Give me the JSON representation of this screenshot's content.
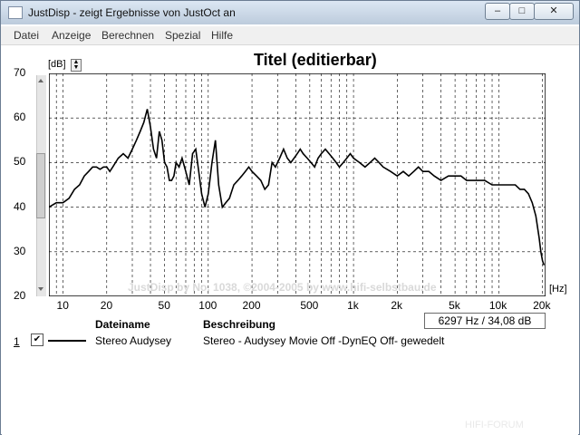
{
  "window": {
    "title": "JustDisp - zeigt Ergebnisse von JustOct an"
  },
  "menu": [
    "Datei",
    "Anzeige",
    "Berechnen",
    "Spezial",
    "Hilfe"
  ],
  "chart_data": {
    "type": "line",
    "title": "Titel (editierbar)",
    "y_unit": "[dB]",
    "x_unit": "[Hz]",
    "ylim": [
      20,
      70
    ],
    "xlim": [
      8,
      21000
    ],
    "x_scale": "log",
    "grid": true,
    "ytick_labels": [
      "70",
      "60",
      "50",
      "40",
      "30",
      "20"
    ],
    "ytick_values": [
      70,
      60,
      50,
      40,
      30,
      20
    ],
    "xtick_labels": [
      "10",
      "20",
      "50",
      "100",
      "200",
      "500",
      "1k",
      "2k",
      "5k",
      "10k",
      "20k"
    ],
    "xtick_values": [
      10,
      20,
      50,
      100,
      200,
      500,
      1000,
      2000,
      5000,
      10000,
      20000
    ],
    "series": [
      {
        "name": "Stereo Audysey",
        "x": [
          8,
          9,
          10,
          11,
          12,
          13,
          14,
          15,
          16,
          17,
          18,
          19,
          20,
          21,
          22,
          24,
          26,
          28,
          30,
          32,
          34,
          36,
          38,
          40,
          42,
          44,
          46,
          48,
          50,
          52,
          54,
          56,
          58,
          60,
          63,
          66,
          70,
          74,
          78,
          82,
          86,
          90,
          95,
          100,
          106,
          112,
          118,
          125,
          132,
          140,
          150,
          160,
          170,
          180,
          190,
          200,
          215,
          230,
          245,
          260,
          275,
          290,
          310,
          330,
          350,
          370,
          390,
          410,
          430,
          450,
          480,
          510,
          540,
          570,
          600,
          640,
          680,
          720,
          760,
          800,
          850,
          900,
          950,
          1000,
          1100,
          1200,
          1300,
          1400,
          1500,
          1600,
          1800,
          2000,
          2200,
          2400,
          2600,
          2800,
          3000,
          3300,
          3600,
          4000,
          4500,
          5000,
          5500,
          6000,
          6500,
          7000,
          8000,
          9000,
          10000,
          11000,
          12000,
          13000,
          14000,
          15000,
          16000,
          17000,
          18000,
          19000,
          19500,
          20000,
          20500
        ],
        "values": [
          40,
          41,
          41,
          42,
          44,
          45,
          47,
          48,
          49,
          49,
          48.5,
          49,
          49,
          48,
          49,
          51,
          52,
          51,
          53,
          55,
          57,
          59,
          62,
          58,
          53,
          51,
          57,
          55,
          50,
          49,
          46,
          46,
          47,
          50,
          49,
          51,
          48,
          45,
          52,
          53,
          48,
          43,
          40,
          43,
          50,
          55,
          45,
          40,
          41,
          42,
          45,
          46,
          47,
          48,
          49,
          48,
          47,
          46,
          44,
          45,
          50,
          49,
          51,
          53,
          51,
          50,
          51,
          52,
          53,
          52,
          51,
          50,
          49,
          51,
          52,
          53,
          52,
          51,
          50,
          49,
          50,
          51,
          52,
          51,
          50,
          49,
          50,
          51,
          50,
          49,
          48,
          47,
          48,
          47,
          48,
          49,
          48,
          48,
          47,
          46,
          47,
          47,
          47,
          46,
          46,
          46,
          46,
          45,
          45,
          45,
          45,
          45,
          44,
          44,
          43,
          41,
          38,
          33,
          30,
          28,
          27
        ]
      }
    ]
  },
  "readout": "6297 Hz / 34,08 dB",
  "watermark": "JustDisp by No. 1038, ©2004-2005 by www.hifi-selbstbau.de",
  "table": {
    "headers": [
      "Dateiname",
      "Beschreibung"
    ],
    "rows": [
      {
        "num": "1",
        "checked": true,
        "filename": "Stereo Audysey",
        "description": "Stereo - Audysey Movie Off -DynEQ Off- gewedelt"
      }
    ]
  },
  "corner_watermark": "HIFI-FORUM"
}
